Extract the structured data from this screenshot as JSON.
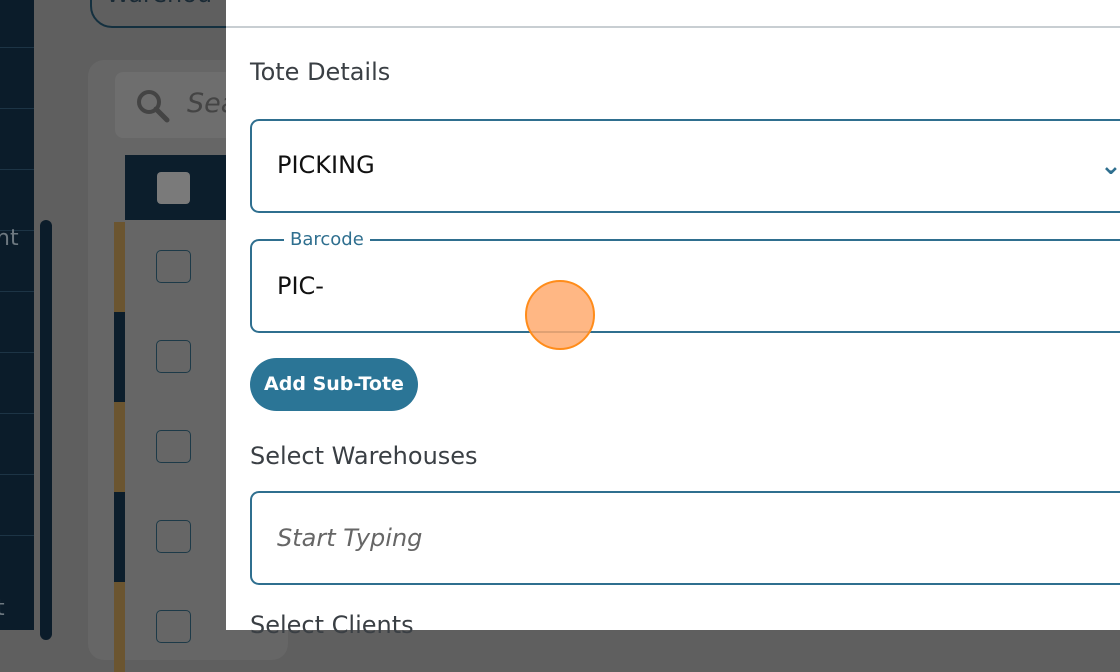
{
  "background": {
    "top_button_text": "Warehou",
    "search_placeholder": "Sea",
    "sidebar_fragments": [
      "nt",
      "t"
    ]
  },
  "modal": {
    "section_title": "Tote Details",
    "tote_type": {
      "value": "PICKING",
      "icon": "chevron-down-icon"
    },
    "barcode": {
      "label": "Barcode",
      "value": "PIC-"
    },
    "add_subtote_label": "Add Sub-Tote",
    "warehouses": {
      "label": "Select Warehouses",
      "placeholder": "Start Typing"
    },
    "clients": {
      "label": "Select Clients"
    }
  },
  "colors": {
    "accent": "#2f6f8f",
    "button": "#2b7596",
    "sidebar": "#0b1c2a",
    "stripe_gold": "#6b5530"
  }
}
